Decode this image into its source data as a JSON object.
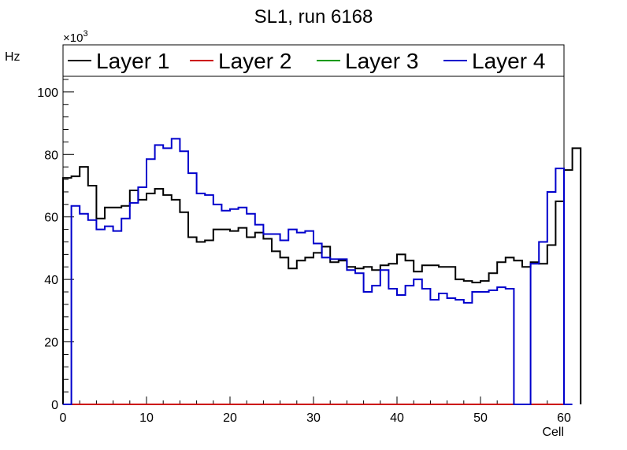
{
  "chart_data": {
    "type": "line",
    "title": "SL1, run 6168",
    "xlabel": "Cell",
    "ylabel": "Hz",
    "y_multiplier": "×10",
    "y_multiplier_exponent": "3",
    "xlim": [
      0,
      60
    ],
    "ylim": [
      0,
      105
    ],
    "x_ticks": [
      0,
      10,
      20,
      30,
      40,
      50,
      60
    ],
    "y_ticks": [
      0,
      20,
      40,
      60,
      80,
      100
    ],
    "legend_position": "top",
    "grid": false,
    "bin_edges_start": 0,
    "bin_width": 1,
    "series": [
      {
        "name": "Layer 1",
        "color": "#000000",
        "values": [
          72.5,
          73,
          76,
          70,
          59.5,
          63,
          63,
          63.5,
          68.5,
          65.5,
          67.5,
          69,
          67,
          65.5,
          61.5,
          53.5,
          52,
          52.5,
          56,
          56,
          55.5,
          56.5,
          53.5,
          55,
          53,
          49,
          47,
          43.5,
          46,
          47,
          48.5,
          50.5,
          45.5,
          46,
          44,
          43.5,
          44,
          43,
          44.5,
          45,
          48,
          46,
          42.5,
          44.5,
          44.5,
          44,
          44,
          40,
          39.5,
          39,
          39.5,
          42,
          45.5,
          47,
          46,
          44,
          45.5,
          45,
          51,
          65,
          75,
          82
        ]
      },
      {
        "name": "Layer 2",
        "color": "#cc0000",
        "values": []
      },
      {
        "name": "Layer 3",
        "color": "#009900",
        "values": [
          0
        ]
      },
      {
        "name": "Layer 4",
        "color": "#0000cc",
        "values": [
          0,
          63.5,
          61,
          59,
          56,
          57,
          55.5,
          59.5,
          64.5,
          69.5,
          78.5,
          83,
          82,
          85,
          81,
          74,
          67.5,
          67,
          64,
          62,
          62.5,
          63,
          61,
          57.5,
          54.5,
          54.5,
          52.5,
          56,
          55,
          55.5,
          51.5,
          47,
          46.5,
          46.5,
          43,
          42,
          36,
          38,
          43,
          37,
          35,
          38,
          40,
          37,
          33.5,
          35.5,
          34,
          33.5,
          32.5,
          36,
          36,
          36.5,
          37.5,
          37,
          0,
          0,
          45,
          52,
          68,
          75.5,
          0
        ]
      }
    ]
  }
}
